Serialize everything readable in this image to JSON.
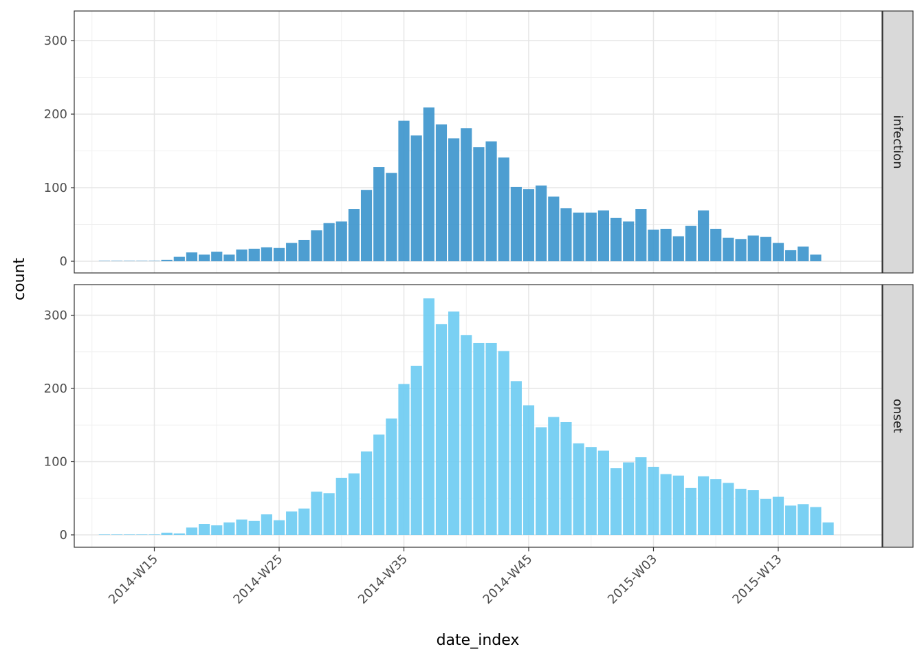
{
  "chart_data": {
    "type": "bar",
    "xlabel": "date_index",
    "ylabel": "count",
    "ylim": [
      0,
      335
    ],
    "y_ticks": [
      0,
      100,
      200,
      300
    ],
    "x_tick_labels": [
      {
        "week_index": 0,
        "label": "2014-W15"
      },
      {
        "week_index": 10,
        "label": "2014-W25"
      },
      {
        "week_index": 20,
        "label": "2014-W35"
      },
      {
        "week_index": 30,
        "label": "2014-W45"
      },
      {
        "week_index": 40,
        "label": "2015-W03"
      },
      {
        "week_index": 50,
        "label": "2015-W13"
      }
    ],
    "x_range_weeks": [
      -5,
      59
    ],
    "first_bar_week_index": -4,
    "panels": [
      {
        "name": "infection",
        "color": "#3a94cc",
        "values": [
          0,
          0,
          0,
          0,
          0,
          2,
          6,
          12,
          9,
          13,
          9,
          16,
          17,
          19,
          18,
          25,
          29,
          42,
          52,
          54,
          71,
          97,
          128,
          120,
          191,
          171,
          209,
          186,
          167,
          181,
          155,
          163,
          141,
          101,
          98,
          103,
          88,
          72,
          66,
          66,
          69,
          59,
          54,
          71,
          43,
          44,
          34,
          48,
          69,
          44,
          32,
          30,
          35,
          33,
          25,
          15,
          20,
          9
        ]
      },
      {
        "name": "onset",
        "color": "#6ccbf2",
        "values": [
          0,
          0,
          0,
          0,
          0,
          3,
          2,
          10,
          15,
          13,
          17,
          21,
          19,
          28,
          20,
          32,
          36,
          59,
          57,
          78,
          84,
          114,
          137,
          159,
          206,
          231,
          323,
          288,
          305,
          273,
          262,
          262,
          251,
          210,
          177,
          147,
          161,
          154,
          125,
          120,
          115,
          91,
          99,
          106,
          93,
          83,
          81,
          64,
          80,
          76,
          71,
          63,
          61,
          49,
          52,
          40,
          42,
          38,
          17
        ]
      }
    ]
  }
}
